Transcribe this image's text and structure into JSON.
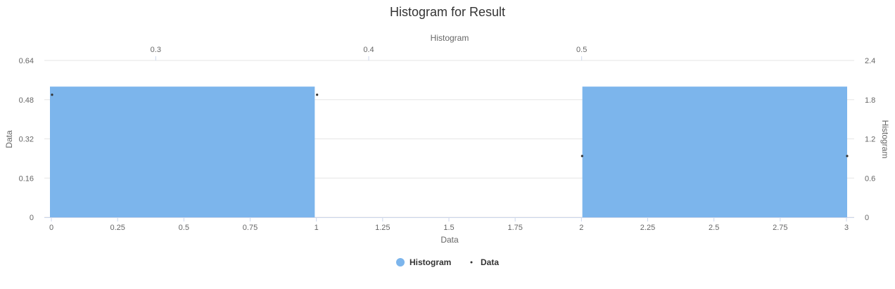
{
  "chart_data": {
    "type": "bar",
    "title": "Histogram for Result",
    "subtitle": "Histogram",
    "colors": {
      "histogram": "#7cb5ec",
      "data": "#333333",
      "grid": "#e6e6e6",
      "text": "#666666"
    },
    "xAxis": {
      "label": "Data",
      "range": [
        0,
        3
      ],
      "ticks": [
        0,
        0.25,
        0.5,
        0.75,
        1,
        1.25,
        1.5,
        1.75,
        2,
        2.25,
        2.5,
        2.75,
        3
      ],
      "tick_labels": [
        "0",
        "0.25",
        "0.5",
        "0.75",
        "1",
        "1.25",
        "1.5",
        "1.75",
        "2",
        "2.25",
        "2.5",
        "2.75",
        "3"
      ]
    },
    "xAxisTop": {
      "range": [
        0.25,
        0.625
      ],
      "ticks": [
        0.3,
        0.4,
        0.5
      ],
      "tick_labels": [
        "0.3",
        "0.4",
        "0.5"
      ]
    },
    "yAxisLeft": {
      "label": "Data",
      "range": [
        0,
        0.64
      ],
      "ticks": [
        0,
        0.16,
        0.32,
        0.48,
        0.64
      ],
      "tick_labels": [
        "0",
        "0.16",
        "0.32",
        "0.48",
        "0.64"
      ]
    },
    "yAxisRight": {
      "label": "Histogram",
      "range": [
        0,
        2.4
      ],
      "ticks": [
        0,
        0.6,
        1.2,
        1.8,
        2.4
      ],
      "tick_labels": [
        "0",
        "0.6",
        "1.2",
        "1.8",
        "2.4"
      ]
    },
    "series": [
      {
        "name": "Histogram",
        "type": "column",
        "axis": "top-right",
        "bins": [
          {
            "x": 0.3,
            "x_start": 0.25,
            "x_end": 0.375,
            "value": 2
          },
          {
            "x": 0.4,
            "x_start": 0.375,
            "x_end": 0.5,
            "value": 0
          },
          {
            "x": 0.5,
            "x_start": 0.5,
            "x_end": 0.625,
            "value": 2
          }
        ]
      },
      {
        "name": "Data",
        "type": "scatter",
        "axis": "bottom-left",
        "points": [
          {
            "x": 0,
            "y": 0.5
          },
          {
            "x": 1,
            "y": 0.5
          },
          {
            "x": 2,
            "y": 0.25
          },
          {
            "x": 3,
            "y": 0.25
          }
        ]
      }
    ],
    "legend": {
      "position": "bottom-center",
      "items": [
        "Histogram",
        "Data"
      ]
    },
    "grid": true
  }
}
